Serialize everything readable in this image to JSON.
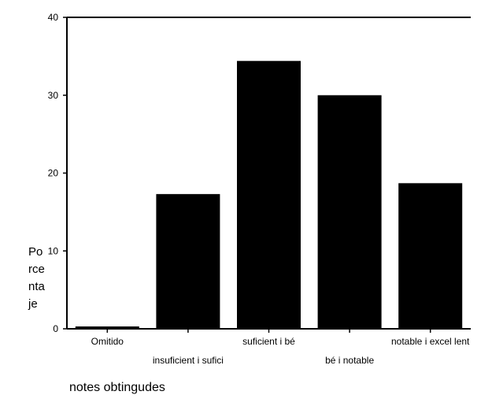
{
  "chart_data": {
    "type": "bar",
    "categories": [
      "Omitido",
      "insuficient i sufici",
      "suficient i bé",
      "bé i notable",
      "notable i excel lent"
    ],
    "values": [
      0.3,
      17.3,
      34.4,
      30.0,
      18.7
    ],
    "ylabel_lines": [
      "Po",
      "rce",
      "nta",
      "je"
    ],
    "xlabel": "notes obtingudes",
    "ylim": [
      0,
      40
    ],
    "yticks": [
      0,
      10,
      20,
      30,
      40
    ],
    "grid": false,
    "bar_color": "#000000"
  }
}
